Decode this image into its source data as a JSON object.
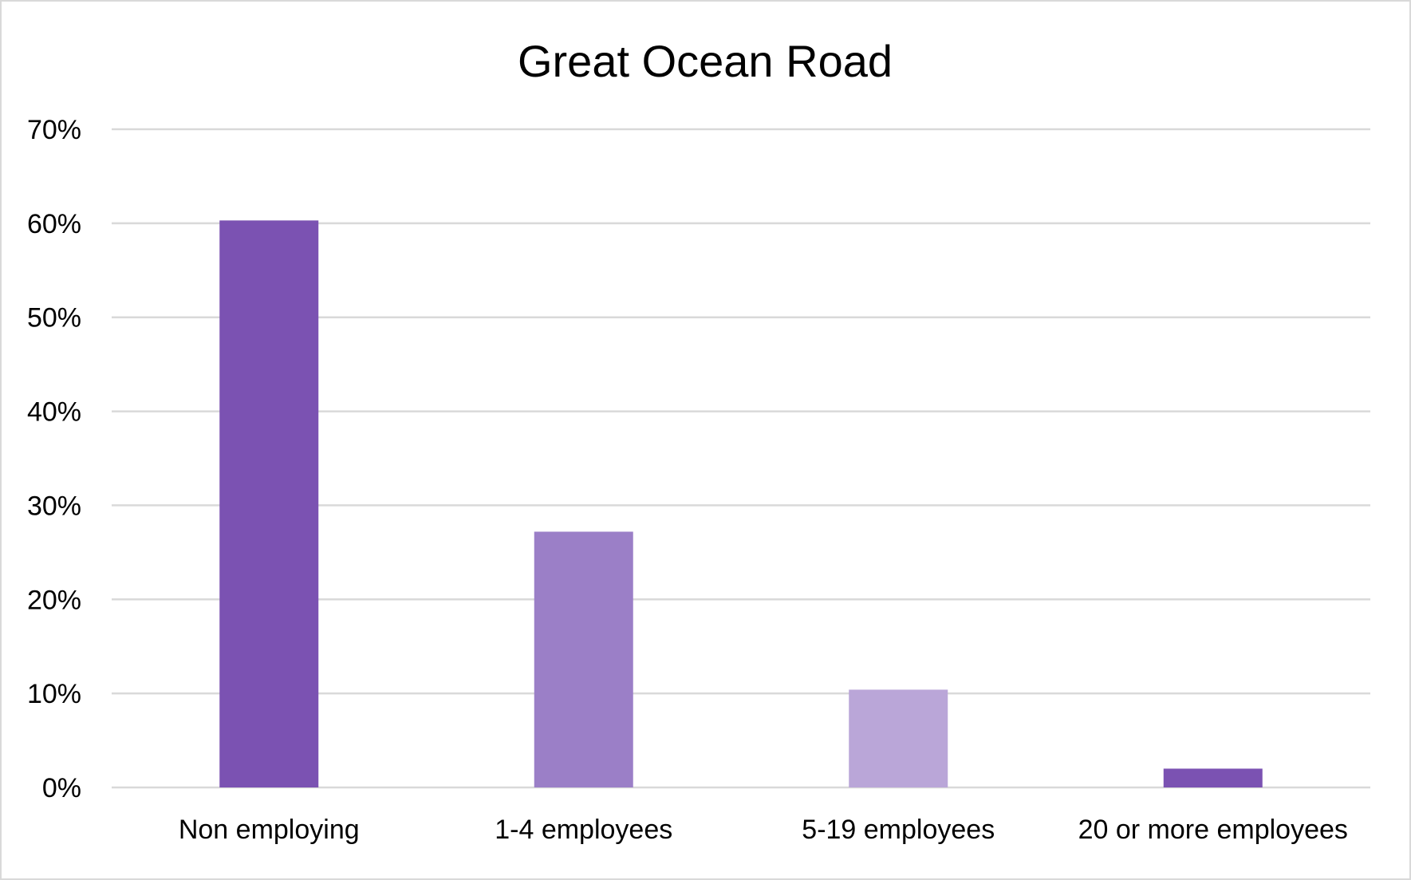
{
  "chart_data": {
    "type": "bar",
    "title": "Great Ocean Road",
    "xlabel": "",
    "ylabel": "",
    "categories": [
      "Non employing",
      "1-4 employees",
      "5-19 employees",
      "20 or more employees"
    ],
    "values": [
      60.3,
      27.2,
      10.4,
      2.0
    ],
    "colors": [
      "#7b52b2",
      "#9b7fc7",
      "#baa6d8",
      "#7b52b2"
    ],
    "ylim": [
      0,
      70
    ],
    "yticks": [
      0,
      10,
      20,
      30,
      40,
      50,
      60,
      70
    ],
    "ytick_labels": [
      "0%",
      "10%",
      "20%",
      "30%",
      "40%",
      "50%",
      "60%",
      "70%"
    ],
    "grid": true,
    "legend": "none"
  }
}
